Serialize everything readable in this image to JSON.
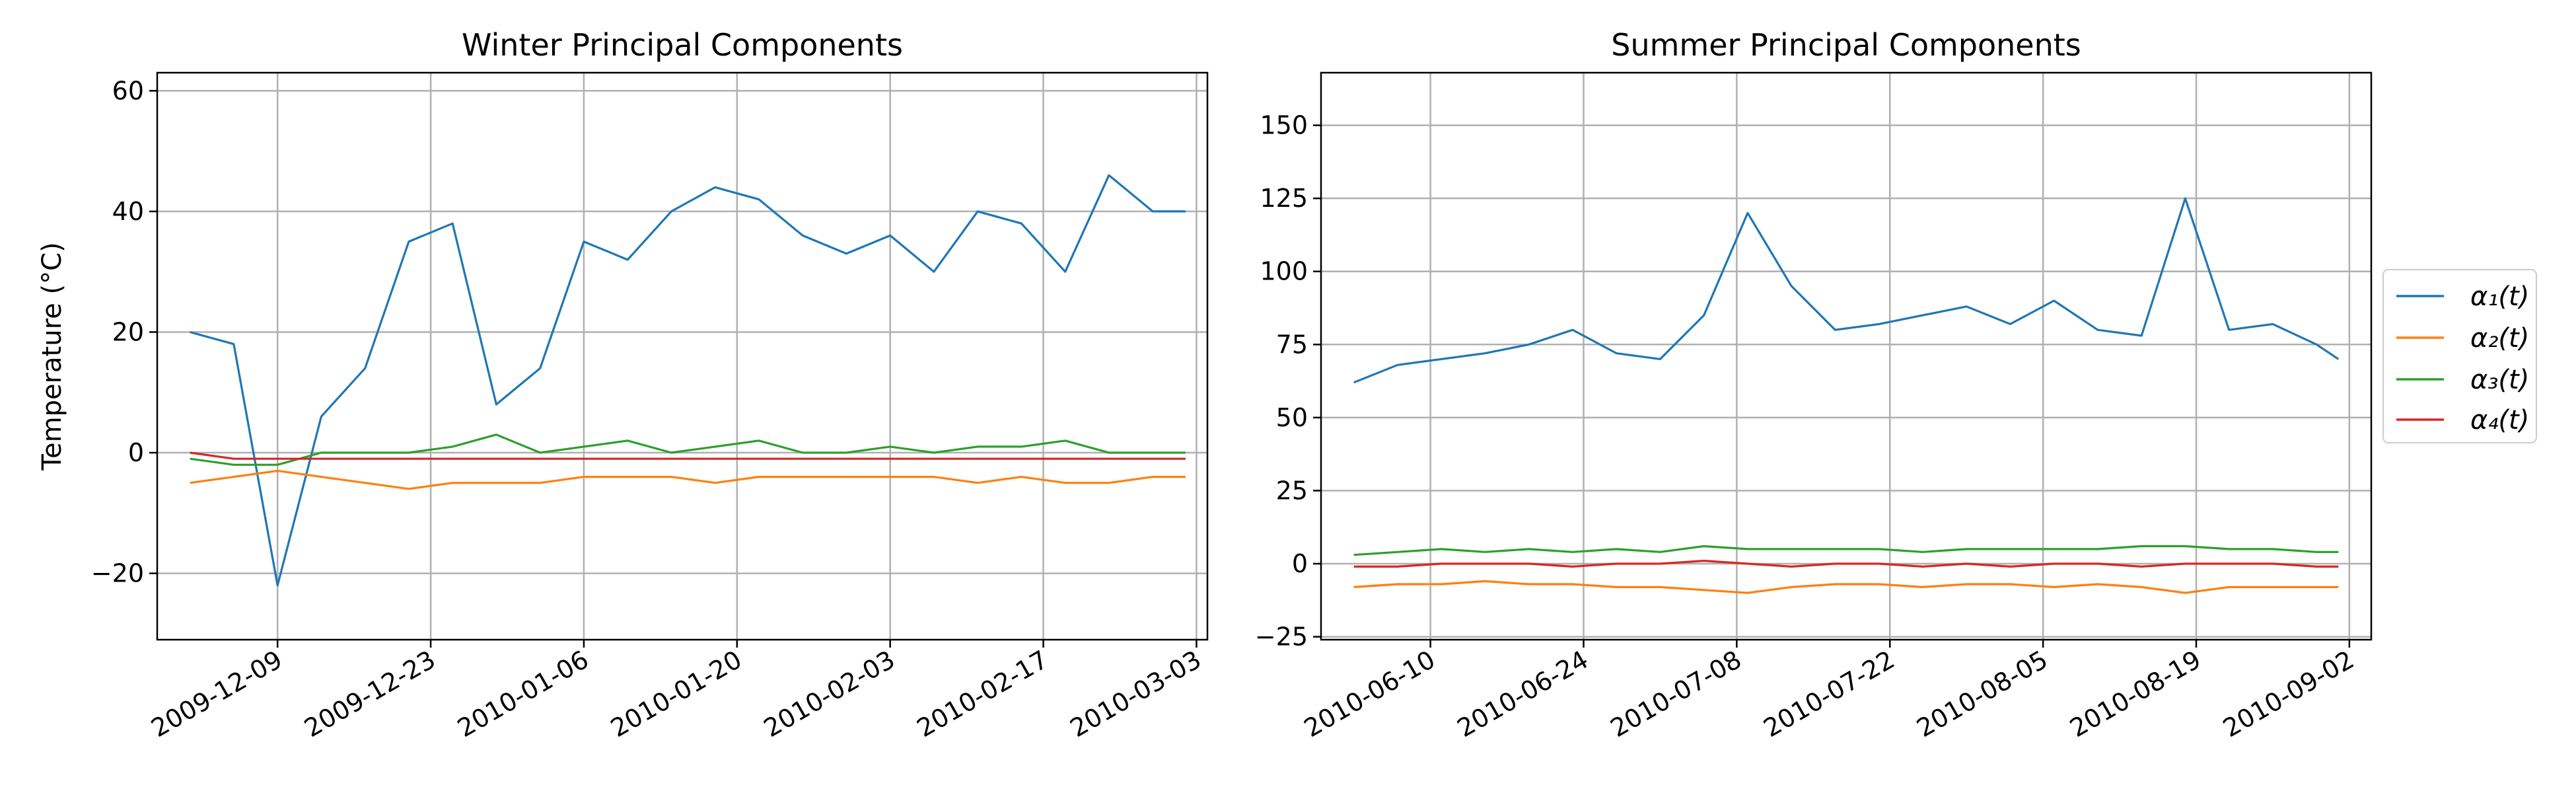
{
  "colors": {
    "s1": "#1f77b4",
    "s2": "#ff7f0e",
    "s3": "#2ca02c",
    "s4": "#d62728",
    "grid": "#b0b0b0"
  },
  "legend": {
    "placement": "right-outside",
    "entries": [
      {
        "label": "α₁(t)",
        "color": "#1f77b4"
      },
      {
        "label": "α₂(t)",
        "color": "#ff7f0e"
      },
      {
        "label": "α₃(t)",
        "color": "#2ca02c"
      },
      {
        "label": "α₄(t)",
        "color": "#d62728"
      }
    ]
  },
  "chart_data": [
    {
      "type": "line",
      "title": "Winter Principal Components",
      "xlabel": "",
      "ylabel": "Temperature (°C)",
      "grid": true,
      "xlim": [
        "2009-11-28",
        "2010-03-04"
      ],
      "ylim": [
        -31,
        63
      ],
      "x_ticks": [
        "2009-12-09",
        "2009-12-23",
        "2010-01-06",
        "2010-01-20",
        "2010-02-03",
        "2010-02-17",
        "2010-03-03"
      ],
      "y_ticks": [
        -20,
        0,
        20,
        40,
        60
      ],
      "x": [
        "2009-12-01",
        "2009-12-05",
        "2009-12-09",
        "2009-12-13",
        "2009-12-17",
        "2009-12-21",
        "2009-12-25",
        "2009-12-29",
        "2010-01-02",
        "2010-01-06",
        "2010-01-10",
        "2010-01-14",
        "2010-01-18",
        "2010-01-22",
        "2010-01-26",
        "2010-01-30",
        "2010-02-03",
        "2010-02-07",
        "2010-02-11",
        "2010-02-15",
        "2010-02-19",
        "2010-02-23",
        "2010-02-27",
        "2010-03-02"
      ],
      "series": [
        {
          "name": "α₁(t)",
          "color": "#1f77b4",
          "values": [
            20,
            18,
            -22,
            6,
            14,
            35,
            38,
            8,
            14,
            35,
            32,
            40,
            44,
            42,
            36,
            33,
            36,
            30,
            40,
            38,
            30,
            46,
            40,
            40
          ]
        },
        {
          "name": "α₂(t)",
          "color": "#ff7f0e",
          "values": [
            -5,
            -4,
            -3,
            -4,
            -5,
            -6,
            -5,
            -5,
            -5,
            -4,
            -4,
            -4,
            -5,
            -4,
            -4,
            -4,
            -4,
            -4,
            -5,
            -4,
            -5,
            -5,
            -4,
            -4
          ]
        },
        {
          "name": "α₃(t)",
          "color": "#2ca02c",
          "values": [
            -1,
            -2,
            -2,
            0,
            0,
            0,
            1,
            3,
            0,
            1,
            2,
            0,
            1,
            2,
            0,
            0,
            1,
            0,
            1,
            1,
            2,
            0,
            0,
            0
          ]
        },
        {
          "name": "α₄(t)",
          "color": "#d62728",
          "values": [
            0,
            -1,
            -1,
            -1,
            -1,
            -1,
            -1,
            -1,
            -1,
            -1,
            -1,
            -1,
            -1,
            -1,
            -1,
            -1,
            -1,
            -1,
            -1,
            -1,
            -1,
            -1,
            -1,
            -1
          ]
        }
      ]
    },
    {
      "type": "line",
      "title": "Summer Principal Components",
      "xlabel": "",
      "ylabel": "",
      "grid": true,
      "xlim": [
        "2010-05-31",
        "2010-09-04"
      ],
      "ylim": [
        -26,
        168
      ],
      "x_ticks": [
        "2010-06-10",
        "2010-06-24",
        "2010-07-08",
        "2010-07-22",
        "2010-08-05",
        "2010-08-19",
        "2010-09-02"
      ],
      "y_ticks": [
        -25,
        0,
        25,
        50,
        75,
        100,
        125,
        150
      ],
      "x": [
        "2010-06-03",
        "2010-06-07",
        "2010-06-11",
        "2010-06-15",
        "2010-06-19",
        "2010-06-23",
        "2010-06-27",
        "2010-07-01",
        "2010-07-05",
        "2010-07-09",
        "2010-07-13",
        "2010-07-17",
        "2010-07-21",
        "2010-07-25",
        "2010-07-29",
        "2010-08-02",
        "2010-08-06",
        "2010-08-10",
        "2010-08-14",
        "2010-08-18",
        "2010-08-22",
        "2010-08-26",
        "2010-08-30",
        "2010-09-01"
      ],
      "series": [
        {
          "name": "α₁(t)",
          "color": "#1f77b4",
          "values": [
            62,
            68,
            70,
            72,
            75,
            80,
            72,
            70,
            85,
            120,
            95,
            80,
            82,
            85,
            88,
            82,
            90,
            80,
            78,
            125,
            80,
            82,
            75,
            70
          ]
        },
        {
          "name": "α₂(t)",
          "color": "#ff7f0e",
          "values": [
            -8,
            -7,
            -7,
            -6,
            -7,
            -7,
            -8,
            -8,
            -9,
            -10,
            -8,
            -7,
            -7,
            -8,
            -7,
            -7,
            -8,
            -7,
            -8,
            -10,
            -8,
            -8,
            -8,
            -8
          ]
        },
        {
          "name": "α₃(t)",
          "color": "#2ca02c",
          "values": [
            3,
            4,
            5,
            4,
            5,
            4,
            5,
            4,
            6,
            5,
            5,
            5,
            5,
            4,
            5,
            5,
            5,
            5,
            6,
            6,
            5,
            5,
            4,
            4
          ]
        },
        {
          "name": "α₄(t)",
          "color": "#d62728",
          "values": [
            -1,
            -1,
            0,
            0,
            0,
            -1,
            0,
            0,
            1,
            0,
            -1,
            0,
            0,
            -1,
            0,
            -1,
            0,
            0,
            -1,
            0,
            0,
            0,
            -1,
            -1
          ]
        }
      ]
    }
  ]
}
